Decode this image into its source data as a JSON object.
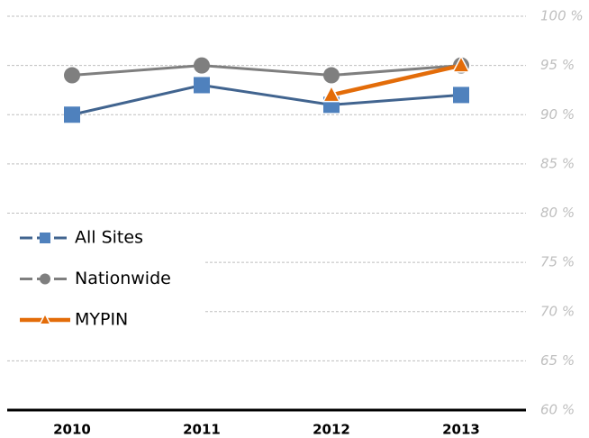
{
  "chart_data": {
    "type": "line",
    "categories": [
      "2010",
      "2011",
      "2012",
      "2013"
    ],
    "series": [
      {
        "name": "All Sites",
        "color": "#41648f",
        "marker_color": "#4f81bd",
        "marker": "square",
        "values": [
          90,
          93,
          91,
          92
        ]
      },
      {
        "name": "Nationwide",
        "color": "#7f7f7f",
        "marker_color": "#7f7f7f",
        "marker": "circle",
        "values": [
          94,
          95,
          94,
          95
        ]
      },
      {
        "name": "MYPIN",
        "color": "#e36c09",
        "marker_color": "#e36c09",
        "marker": "triangle",
        "values": [
          null,
          null,
          92,
          95
        ]
      }
    ],
    "ylim": [
      60,
      100
    ],
    "yticks": [
      {
        "value": 60,
        "label": "60 %"
      },
      {
        "value": 65,
        "label": "65 %"
      },
      {
        "value": 70,
        "label": "70 %"
      },
      {
        "value": 75,
        "label": "75 %"
      },
      {
        "value": 80,
        "label": "80 %"
      },
      {
        "value": 85,
        "label": "85 %"
      },
      {
        "value": 90,
        "label": "90 %"
      },
      {
        "value": 95,
        "label": "95 %"
      },
      {
        "value": 100,
        "label": "100 %"
      }
    ],
    "grid": true,
    "legend": "left"
  }
}
